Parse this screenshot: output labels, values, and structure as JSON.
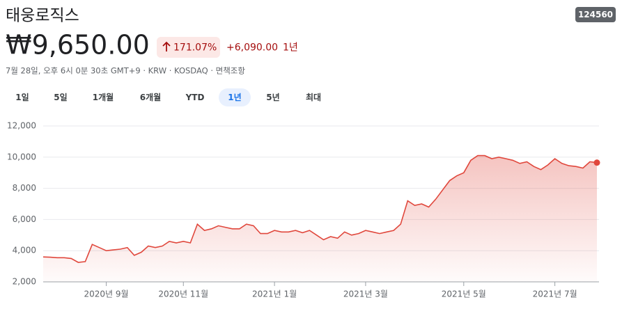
{
  "header": {
    "title": "태웅로직스",
    "ticker": "124560",
    "price": "₩9,650.00",
    "change_percent": "171.07%",
    "change_value": "+6,090.00",
    "period": "1년",
    "info": "7월 28일, 오후 6시 0분 30초 GMT+9 · KRW · KOSDAQ · 면책조항"
  },
  "tabs": [
    "1일",
    "5일",
    "1개월",
    "6개월",
    "YTD",
    "1년",
    "5년",
    "최대"
  ],
  "chart_data": {
    "type": "line",
    "color": "#e0473c",
    "grid": true,
    "categories": [
      null,
      null,
      null,
      null,
      null,
      null,
      null,
      null,
      null,
      "2020년 9월",
      null,
      null,
      null,
      null,
      null,
      null,
      null,
      null,
      null,
      null,
      "2020년 11월",
      null,
      null,
      null,
      null,
      null,
      null,
      null,
      null,
      null,
      null,
      null,
      null,
      "2021년 1월",
      null,
      null,
      null,
      null,
      null,
      null,
      null,
      null,
      null,
      null,
      null,
      null,
      "2021년 3월",
      null,
      null,
      null,
      null,
      null,
      null,
      null,
      null,
      null,
      null,
      null,
      null,
      null,
      "2021년 5월",
      null,
      null,
      null,
      null,
      null,
      null,
      null,
      null,
      null,
      null,
      null,
      null,
      "2021년 7월",
      null,
      null,
      null,
      null,
      null,
      null
    ],
    "values": [
      3600,
      3580,
      3550,
      3550,
      3500,
      3250,
      3300,
      4400,
      4200,
      4000,
      4050,
      4100,
      4200,
      3700,
      3900,
      4300,
      4200,
      4300,
      4600,
      4500,
      4600,
      4500,
      5700,
      5300,
      5400,
      5600,
      5500,
      5400,
      5400,
      5700,
      5600,
      5100,
      5100,
      5300,
      5200,
      5200,
      5300,
      5150,
      5300,
      5000,
      4700,
      4900,
      4800,
      5200,
      5000,
      5100,
      5300,
      5200,
      5100,
      5200,
      5300,
      5700,
      7200,
      6900,
      7000,
      6800,
      7300,
      7900,
      8500,
      8800,
      9000,
      9800,
      10100,
      10100,
      9900,
      10000,
      9900,
      9800,
      9600,
      9700,
      9400,
      9200,
      9500,
      9900,
      9600,
      9450,
      9400,
      9300,
      9700,
      9650
    ],
    "ylim": [
      2000,
      12000
    ],
    "yticks": [
      {
        "value": 2000,
        "label": "2,000"
      },
      {
        "value": 4000,
        "label": "4,000"
      },
      {
        "value": 6000,
        "label": "6,000"
      },
      {
        "value": 8000,
        "label": "8,000"
      },
      {
        "value": 10000,
        "label": "10,000"
      },
      {
        "value": 12000,
        "label": "12,000"
      }
    ]
  }
}
